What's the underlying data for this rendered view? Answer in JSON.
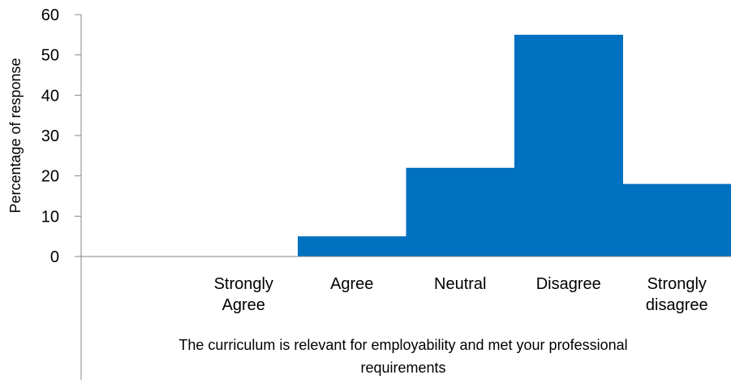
{
  "chart_data": {
    "type": "bar",
    "title": "",
    "ylabel": "Percentage of response",
    "xlabel": "The curriculum is relevant for employability and met your professional requirements",
    "categories": [
      "",
      "Strongly Agree",
      "Agree",
      "Neutral",
      "Disagree",
      "Strongly disagree"
    ],
    "values": [
      0,
      0,
      5,
      22,
      55,
      18
    ],
    "ylim": [
      0,
      60
    ],
    "yticks": [
      "0",
      "10",
      "20",
      "30",
      "40",
      "50",
      "60"
    ],
    "grid": false,
    "legend": "none",
    "bar_color": "#0070C0"
  }
}
